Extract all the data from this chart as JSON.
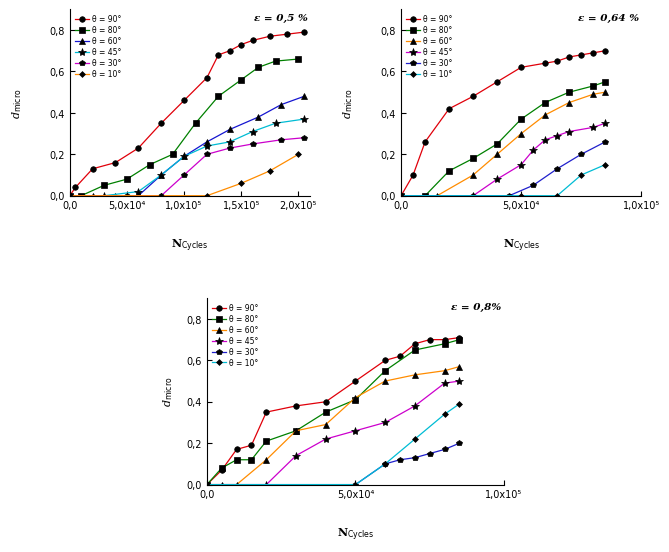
{
  "title1": "ε = 0,5 %",
  "title2": "ε = 0,64 %",
  "title3": "ε = 0,8%",
  "legend_labels": [
    "θ = 90°",
    "θ = 80°",
    "θ = 60°",
    "θ = 45°",
    "θ = 30°",
    "θ = 10°"
  ],
  "colors1": [
    "#e0000a",
    "#008000",
    "#1515d0",
    "#00bcd4",
    "#cc00cc",
    "#ff8c00"
  ],
  "colors2": [
    "#e0000a",
    "#008000",
    "#ff8c00",
    "#cc00cc",
    "#2020cc",
    "#00bcd4"
  ],
  "colors3": [
    "#e0000a",
    "#008000",
    "#ff8c00",
    "#cc00cc",
    "#2020cc",
    "#00bcd4"
  ],
  "markers": [
    "o",
    "s",
    "^",
    "*",
    "P",
    "D"
  ],
  "marker_sizes": [
    4,
    4,
    4,
    6,
    5,
    4
  ],
  "plot1": {
    "xlim": [
      0,
      210000.0
    ],
    "xticks": [
      0,
      50000,
      100000,
      150000,
      200000
    ],
    "xtick_labels": [
      "0,0",
      "5,0x10⁴",
      "1,0x10⁵",
      "1,5x10⁵",
      "2,0x10⁵"
    ],
    "ylim": [
      0,
      0.9
    ],
    "yticks": [
      0.0,
      0.2,
      0.4,
      0.6,
      0.8
    ],
    "ytick_labels": [
      "0,0",
      "0,2",
      "0,4",
      "0,6",
      "0,8"
    ],
    "series": [
      {
        "x": [
          0,
          5000,
          20000,
          40000,
          60000,
          80000,
          100000,
          120000,
          130000,
          140000,
          150000,
          160000,
          175000,
          190000,
          205000
        ],
        "y": [
          0,
          0.04,
          0.13,
          0.16,
          0.23,
          0.35,
          0.46,
          0.57,
          0.68,
          0.7,
          0.73,
          0.75,
          0.77,
          0.78,
          0.79
        ]
      },
      {
        "x": [
          0,
          10000,
          30000,
          50000,
          70000,
          90000,
          110000,
          130000,
          150000,
          165000,
          180000,
          200000
        ],
        "y": [
          0,
          0.0,
          0.05,
          0.08,
          0.15,
          0.2,
          0.35,
          0.48,
          0.56,
          0.62,
          0.65,
          0.66
        ]
      },
      {
        "x": [
          0,
          20000,
          40000,
          60000,
          80000,
          100000,
          120000,
          140000,
          165000,
          185000,
          205000
        ],
        "y": [
          0,
          0.0,
          0.0,
          0.0,
          0.1,
          0.19,
          0.26,
          0.32,
          0.38,
          0.44,
          0.48
        ]
      },
      {
        "x": [
          0,
          30000,
          60000,
          80000,
          100000,
          120000,
          140000,
          160000,
          180000,
          205000
        ],
        "y": [
          0,
          0.0,
          0.02,
          0.1,
          0.19,
          0.24,
          0.26,
          0.31,
          0.35,
          0.37
        ]
      },
      {
        "x": [
          0,
          50000,
          80000,
          100000,
          120000,
          140000,
          160000,
          185000,
          205000
        ],
        "y": [
          0,
          0.0,
          0.0,
          0.1,
          0.2,
          0.23,
          0.25,
          0.27,
          0.28
        ]
      },
      {
        "x": [
          0,
          80000,
          120000,
          150000,
          175000,
          200000
        ],
        "y": [
          0,
          0.0,
          0.0,
          0.06,
          0.12,
          0.2
        ]
      }
    ]
  },
  "plot2": {
    "xlim": [
      0,
      100000.0
    ],
    "xticks": [
      0,
      50000,
      100000
    ],
    "xtick_labels": [
      "0,0",
      "5,0x10⁴",
      "1,0x10⁵"
    ],
    "ylim": [
      0,
      0.9
    ],
    "yticks": [
      0.0,
      0.2,
      0.4,
      0.6,
      0.8
    ],
    "ytick_labels": [
      "0,0",
      "0,2",
      "0,4",
      "0,6",
      "0,8"
    ],
    "series": [
      {
        "x": [
          0,
          5000,
          10000,
          20000,
          30000,
          40000,
          50000,
          60000,
          65000,
          70000,
          75000,
          80000,
          85000
        ],
        "y": [
          0,
          0.1,
          0.26,
          0.42,
          0.48,
          0.55,
          0.62,
          0.64,
          0.65,
          0.67,
          0.68,
          0.69,
          0.7
        ]
      },
      {
        "x": [
          0,
          10000,
          20000,
          30000,
          40000,
          50000,
          60000,
          70000,
          80000,
          85000
        ],
        "y": [
          0,
          0.0,
          0.12,
          0.18,
          0.25,
          0.37,
          0.45,
          0.5,
          0.53,
          0.55
        ]
      },
      {
        "x": [
          0,
          15000,
          30000,
          40000,
          50000,
          60000,
          70000,
          80000,
          85000
        ],
        "y": [
          0,
          0.0,
          0.1,
          0.2,
          0.3,
          0.39,
          0.45,
          0.49,
          0.5
        ]
      },
      {
        "x": [
          0,
          30000,
          40000,
          50000,
          55000,
          60000,
          65000,
          70000,
          80000,
          85000
        ],
        "y": [
          0,
          0.0,
          0.08,
          0.15,
          0.22,
          0.27,
          0.29,
          0.31,
          0.33,
          0.35
        ]
      },
      {
        "x": [
          0,
          30000,
          45000,
          55000,
          65000,
          75000,
          85000
        ],
        "y": [
          0,
          0.0,
          0.0,
          0.05,
          0.13,
          0.2,
          0.26
        ]
      },
      {
        "x": [
          0,
          50000,
          65000,
          75000,
          85000
        ],
        "y": [
          0,
          0.0,
          0.0,
          0.1,
          0.15
        ]
      }
    ]
  },
  "plot3": {
    "xlim": [
      0,
      100000.0
    ],
    "xticks": [
      0,
      50000,
      100000
    ],
    "xtick_labels": [
      "0,0",
      "5,0x10⁴",
      "1,0x10⁵"
    ],
    "ylim": [
      0,
      0.9
    ],
    "yticks": [
      0.0,
      0.2,
      0.4,
      0.6,
      0.8
    ],
    "ytick_labels": [
      "0,0",
      "0,2",
      "0,4",
      "0,6",
      "0,8"
    ],
    "series": [
      {
        "x": [
          0,
          5000,
          10000,
          15000,
          20000,
          30000,
          40000,
          50000,
          60000,
          65000,
          70000,
          75000,
          80000,
          85000
        ],
        "y": [
          0,
          0.07,
          0.17,
          0.19,
          0.35,
          0.38,
          0.4,
          0.5,
          0.6,
          0.62,
          0.68,
          0.7,
          0.7,
          0.71
        ]
      },
      {
        "x": [
          0,
          5000,
          10000,
          15000,
          20000,
          30000,
          40000,
          50000,
          60000,
          70000,
          80000,
          85000
        ],
        "y": [
          0,
          0.08,
          0.12,
          0.12,
          0.21,
          0.26,
          0.35,
          0.41,
          0.55,
          0.65,
          0.68,
          0.7
        ]
      },
      {
        "x": [
          0,
          5000,
          10000,
          20000,
          30000,
          40000,
          50000,
          60000,
          70000,
          80000,
          85000
        ],
        "y": [
          0,
          0.0,
          0.0,
          0.12,
          0.26,
          0.29,
          0.42,
          0.5,
          0.53,
          0.55,
          0.57
        ]
      },
      {
        "x": [
          0,
          20000,
          30000,
          40000,
          50000,
          60000,
          70000,
          80000,
          85000
        ],
        "y": [
          0,
          0.0,
          0.14,
          0.22,
          0.26,
          0.3,
          0.38,
          0.49,
          0.5
        ]
      },
      {
        "x": [
          0,
          50000,
          60000,
          65000,
          70000,
          75000,
          80000,
          85000
        ],
        "y": [
          0,
          0.0,
          0.1,
          0.12,
          0.13,
          0.15,
          0.17,
          0.2
        ]
      },
      {
        "x": [
          0,
          50000,
          60000,
          70000,
          80000,
          85000
        ],
        "y": [
          0,
          0.0,
          0.1,
          0.22,
          0.34,
          0.39
        ]
      }
    ]
  }
}
